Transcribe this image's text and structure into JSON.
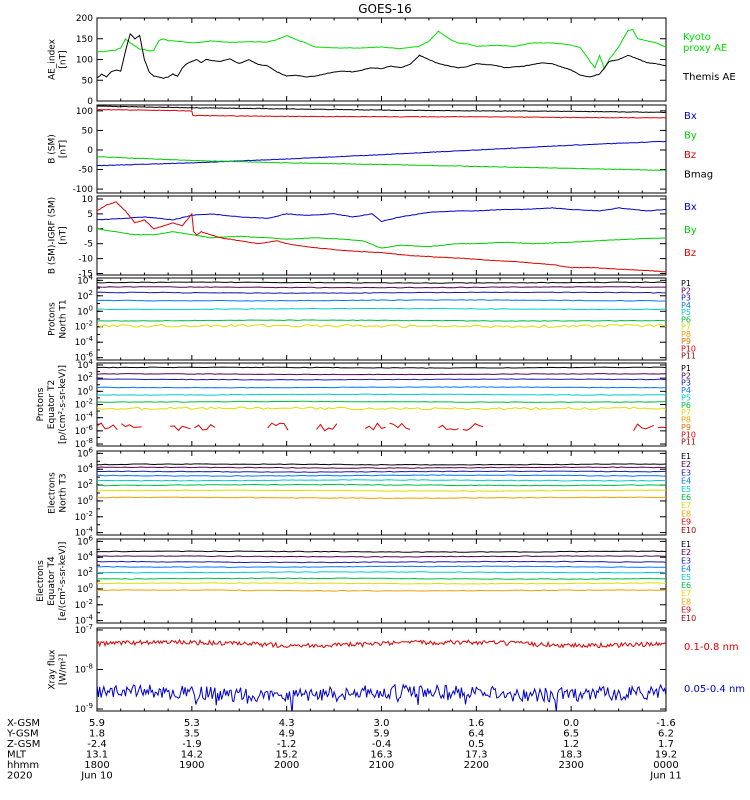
{
  "title": "GOES-16",
  "chart_data": [
    {
      "type": "line",
      "ylabel": [
        "AE_index",
        "[nT]"
      ],
      "yticks": [
        "200",
        "150",
        "100",
        "50",
        "0"
      ],
      "ylim": [
        0,
        200
      ],
      "series": [
        {
          "name": "Kyoto proxy AE",
          "label_lines": [
            "Kyoto",
            "proxy AE"
          ],
          "color": "#00dd00",
          "t": [
            0,
            0.1,
            0.2,
            0.25,
            0.3,
            0.35,
            0.45,
            0.5,
            0.55,
            0.6,
            0.65,
            0.7,
            0.75,
            0.8,
            0.9,
            1.0,
            1.1,
            1.2,
            1.4,
            1.6,
            1.8,
            1.9,
            2.0,
            2.1,
            2.2,
            2.3,
            2.5,
            2.8,
            3.0,
            3.2,
            3.4,
            3.5,
            3.6,
            3.7,
            3.8,
            3.9,
            4.0,
            4.1,
            4.2,
            4.4,
            4.6,
            4.8,
            5.0,
            5.1,
            5.2,
            5.25,
            5.3,
            5.35,
            5.4,
            5.5,
            5.6,
            5.65,
            5.7,
            5.8,
            5.9,
            6.0
          ],
          "v": [
            118,
            120,
            123,
            128,
            150,
            140,
            125,
            124,
            120,
            122,
            145,
            150,
            145,
            145,
            143,
            140,
            142,
            145,
            141,
            143,
            142,
            148,
            158,
            148,
            140,
            130,
            128,
            128,
            130,
            126,
            132,
            144,
            168,
            152,
            140,
            138,
            132,
            133,
            134,
            132,
            140,
            140,
            135,
            128,
            95,
            80,
            110,
            78,
            100,
            130,
            170,
            172,
            150,
            145,
            140,
            130
          ]
        },
        {
          "name": "Themis AE",
          "label_lines": [
            "Themis AE"
          ],
          "color": "#000000",
          "t": [
            0,
            0.05,
            0.1,
            0.15,
            0.2,
            0.25,
            0.3,
            0.35,
            0.4,
            0.45,
            0.5,
            0.55,
            0.6,
            0.65,
            0.7,
            0.75,
            0.8,
            0.85,
            0.9,
            0.95,
            1.0,
            1.05,
            1.1,
            1.15,
            1.2,
            1.3,
            1.4,
            1.5,
            1.6,
            1.7,
            1.8,
            1.9,
            2.0,
            2.1,
            2.2,
            2.3,
            2.4,
            2.5,
            2.6,
            2.7,
            2.8,
            2.9,
            3.0,
            3.1,
            3.2,
            3.3,
            3.4,
            3.5,
            3.6,
            3.7,
            3.8,
            3.9,
            4.0,
            4.1,
            4.2,
            4.3,
            4.4,
            4.5,
            4.6,
            4.7,
            4.8,
            4.9,
            5.0,
            5.1,
            5.2,
            5.3,
            5.4,
            5.5,
            5.6,
            5.7,
            5.8,
            5.9,
            6.0
          ],
          "v": [
            55,
            65,
            58,
            70,
            75,
            72,
            120,
            162,
            150,
            158,
            100,
            70,
            60,
            58,
            55,
            58,
            65,
            60,
            80,
            90,
            95,
            100,
            92,
            100,
            98,
            95,
            102,
            90,
            100,
            88,
            85,
            70,
            60,
            62,
            58,
            60,
            65,
            70,
            72,
            70,
            75,
            80,
            78,
            84,
            80,
            88,
            110,
            100,
            90,
            85,
            80,
            82,
            90,
            88,
            86,
            80,
            82,
            84,
            88,
            92,
            90,
            82,
            75,
            62,
            58,
            65,
            95,
            100,
            110,
            102,
            92,
            90,
            85
          ]
        }
      ]
    },
    {
      "type": "line",
      "ylabel": [
        "B (SM)",
        "[nT]"
      ],
      "yticks": [
        "100",
        "50",
        "0",
        "-50",
        "-100"
      ],
      "ylim": [
        -110,
        115
      ],
      "series": [
        {
          "name": "Bx",
          "label_lines": [
            "Bx"
          ],
          "color": "#0000cc",
          "t": [
            0,
            1,
            2,
            3,
            4,
            5,
            6
          ],
          "v": [
            -40,
            -33,
            -23,
            -12,
            0,
            12,
            22
          ]
        },
        {
          "name": "By",
          "label_lines": [
            "By"
          ],
          "color": "#00cc00",
          "t": [
            0,
            0.5,
            1,
            1.5,
            2,
            3,
            4,
            5,
            6
          ],
          "v": [
            -17,
            -22,
            -27,
            -30,
            -33,
            -37,
            -42,
            -47,
            -52
          ]
        },
        {
          "name": "Bz",
          "label_lines": [
            "Bz"
          ],
          "color": "#dd0000",
          "t": [
            0,
            0.5,
            1,
            1.01,
            2,
            3,
            4,
            5,
            6
          ],
          "v": [
            103,
            102,
            100,
            88,
            86,
            85,
            85,
            83,
            82
          ]
        },
        {
          "name": "Bmag",
          "label_lines": [
            "Bmag"
          ],
          "color": "#000000",
          "t": [
            0,
            1,
            2,
            3,
            4,
            5,
            6
          ],
          "v": [
            112,
            108,
            105,
            102,
            100,
            99,
            96
          ]
        }
      ]
    },
    {
      "type": "line",
      "ylabel": [
        "B (SM)-IGRF (SM)",
        "[nT]"
      ],
      "yticks": [
        "10",
        "5",
        "0",
        "-5",
        "-10",
        "-15"
      ],
      "ylim": [
        -15.5,
        11
      ],
      "series": [
        {
          "name": "Bx",
          "label_lines": [
            "Bx"
          ],
          "color": "#0000cc",
          "t": [
            0,
            0.3,
            0.5,
            0.8,
            1.0,
            1.2,
            1.5,
            1.8,
            2.0,
            2.2,
            2.5,
            2.7,
            2.9,
            3.0,
            3.2,
            3.5,
            3.8,
            4.0,
            4.3,
            4.5,
            4.8,
            5.0,
            5.3,
            5.5,
            5.8,
            6.0
          ],
          "v": [
            3,
            3.5,
            4,
            3,
            4.5,
            5,
            4,
            3.5,
            5,
            4.5,
            5,
            4,
            5,
            2.5,
            4,
            5.5,
            6,
            6,
            6.5,
            6.5,
            7,
            6.5,
            6,
            7,
            6,
            6.5
          ]
        },
        {
          "name": "By",
          "label_lines": [
            "By"
          ],
          "color": "#00cc00",
          "t": [
            0,
            0.2,
            0.4,
            0.6,
            0.8,
            1.0,
            1.2,
            1.5,
            1.8,
            2.0,
            2.3,
            2.6,
            2.8,
            3.0,
            3.2,
            3.5,
            3.8,
            4.0,
            4.3,
            4.6,
            5.0,
            5.3,
            5.6,
            6.0
          ],
          "v": [
            0,
            -1,
            -2,
            -2,
            -1,
            -2,
            -3,
            -2.5,
            -3,
            -3.5,
            -3,
            -3.5,
            -4,
            -6.5,
            -5.5,
            -6,
            -5,
            -5,
            -4.5,
            -5,
            -4.5,
            -4,
            -3.5,
            -3
          ]
        },
        {
          "name": "Bz",
          "label_lines": [
            "Bz"
          ],
          "color": "#dd0000",
          "t": [
            0,
            0.1,
            0.2,
            0.3,
            0.35,
            0.4,
            0.5,
            0.6,
            0.7,
            0.8,
            0.9,
            1.0,
            1.02,
            1.05,
            1.1,
            1.3,
            1.5,
            1.7,
            1.9,
            2.0,
            2.2,
            2.5,
            2.7,
            3.0,
            3.3,
            3.6,
            3.9,
            4.1,
            4.4,
            4.6,
            4.8,
            5.0,
            5.2,
            5.5,
            5.8,
            6.0
          ],
          "v": [
            6,
            8,
            9,
            6,
            4,
            2,
            3,
            0,
            1,
            2,
            1,
            5,
            -1,
            -2,
            -1,
            -3,
            -4,
            -5,
            -4,
            -5,
            -6,
            -7,
            -7.5,
            -8,
            -9,
            -9.5,
            -10,
            -10.5,
            -11,
            -11.5,
            -12,
            -13,
            -13,
            -13.5,
            -14,
            -14.5
          ]
        }
      ]
    },
    {
      "type": "line",
      "ylabel": [
        "Protons",
        "North T1"
      ],
      "ylog": true,
      "ylim": [
        -6.3,
        4.3
      ],
      "yticks": [
        [
          4,
          "4"
        ],
        [
          2,
          "2"
        ],
        [
          0,
          "0"
        ],
        [
          -2,
          "-2"
        ],
        [
          -4,
          "-4"
        ],
        [
          -6,
          "-6"
        ]
      ],
      "channels": [
        {
          "name": "P1",
          "color": "#000000",
          "level": 3.7
        },
        {
          "name": "P2",
          "color": "#550055",
          "level": 3.1
        },
        {
          "name": "P3",
          "color": "#1a1aaa",
          "level": 2.4
        },
        {
          "name": "P4",
          "color": "#0077ff",
          "level": 1.4
        },
        {
          "name": "P5",
          "color": "#00cccc",
          "level": 0.3
        },
        {
          "name": "P6",
          "color": "#00bb44",
          "level": -1.2
        },
        {
          "name": "P7",
          "color": "#dddd00",
          "level": -1.9,
          "noisy": true
        },
        {
          "name": "P8",
          "color": "#f0a000",
          "level": -3.3,
          "dashed": true
        },
        {
          "name": "P9",
          "color": "#e07000",
          "level": -99
        },
        {
          "name": "P10",
          "color": "#dd0000",
          "level": -99
        },
        {
          "name": "P11",
          "color": "#990000",
          "level": -99
        }
      ]
    },
    {
      "type": "line",
      "ylabel": [
        "Protons",
        "Equator T2",
        "[p/(cm²-s-sr-keV)]"
      ],
      "ylog": true,
      "ylim": [
        -8.3,
        4.3
      ],
      "yticks": [
        [
          4,
          "4"
        ],
        [
          2,
          "2"
        ],
        [
          0,
          "0"
        ],
        [
          -2,
          "-2"
        ],
        [
          -4,
          "-4"
        ],
        [
          -6,
          "-6"
        ],
        [
          -8,
          "-8"
        ]
      ],
      "channels": [
        {
          "name": "P1",
          "color": "#000000",
          "level": 3.6
        },
        {
          "name": "P2",
          "color": "#550055",
          "level": 2.6
        },
        {
          "name": "P3",
          "color": "#1a1aaa",
          "level": 1.8
        },
        {
          "name": "P4",
          "color": "#0077ff",
          "level": 0.6
        },
        {
          "name": "P5",
          "color": "#00cccc",
          "level": -0.5
        },
        {
          "name": "P6",
          "color": "#00bb44",
          "level": -1.6
        },
        {
          "name": "P7",
          "color": "#dddd00",
          "level": -2.6,
          "noisy": true
        },
        {
          "name": "P8",
          "color": "#f0a000",
          "level": -3.9,
          "dashed": true
        },
        {
          "name": "P9",
          "color": "#e07000",
          "level": -99
        },
        {
          "name": "P10",
          "color": "#dd0000",
          "level": -5.4,
          "dashed": true
        },
        {
          "name": "P11",
          "color": "#990000",
          "level": -99
        }
      ]
    },
    {
      "type": "line",
      "ylabel": [
        "Electrons",
        "North T3"
      ],
      "ylog": true,
      "ylim": [
        -4.3,
        6.3
      ],
      "yticks": [
        [
          6,
          "6"
        ],
        [
          4,
          "4"
        ],
        [
          2,
          "2"
        ],
        [
          0,
          "0"
        ],
        [
          -2,
          "-2"
        ],
        [
          -4,
          "-4"
        ]
      ],
      "channels": [
        {
          "name": "E1",
          "color": "#000000",
          "level": 4.6
        },
        {
          "name": "E2",
          "color": "#550055",
          "level": 4.2
        },
        {
          "name": "E3",
          "color": "#1a1aaa",
          "level": 3.7
        },
        {
          "name": "E4",
          "color": "#0077ff",
          "level": 3.2
        },
        {
          "name": "E5",
          "color": "#00cccc",
          "level": 2.6
        },
        {
          "name": "E6",
          "color": "#00bb44",
          "level": 2.0
        },
        {
          "name": "E7",
          "color": "#dddd00",
          "level": 1.3
        },
        {
          "name": "E8",
          "color": "#f0a000",
          "level": 0.4
        },
        {
          "name": "E9",
          "color": "#dd0000",
          "level": -2.0,
          "dashed": true
        },
        {
          "name": "E10",
          "color": "#990000",
          "level": -99
        }
      ]
    },
    {
      "type": "line",
      "ylabel": [
        "Electrons",
        "Equator T4",
        "[e/(cm²-s-sr-keV)]"
      ],
      "ylog": true,
      "ylim": [
        -4.3,
        6.3
      ],
      "yticks": [
        [
          6,
          "6"
        ],
        [
          4,
          "4"
        ],
        [
          2,
          "2"
        ],
        [
          0,
          "0"
        ],
        [
          -2,
          "-2"
        ],
        [
          -4,
          "-4"
        ]
      ],
      "channels": [
        {
          "name": "E1",
          "color": "#000000",
          "level": 4.7
        },
        {
          "name": "E2",
          "color": "#550055",
          "level": 4.1
        },
        {
          "name": "E3",
          "color": "#1a1aaa",
          "level": 3.4
        },
        {
          "name": "E4",
          "color": "#0077ff",
          "level": 2.8
        },
        {
          "name": "E5",
          "color": "#00cccc",
          "level": 2.1
        },
        {
          "name": "E6",
          "color": "#00bb44",
          "level": 1.3
        },
        {
          "name": "E7",
          "color": "#dddd00",
          "level": 0.7
        },
        {
          "name": "E8",
          "color": "#f0a000",
          "level": -0.2
        },
        {
          "name": "E9",
          "color": "#dd0000",
          "level": -1.8,
          "dashed": true
        },
        {
          "name": "E10",
          "color": "#990000",
          "level": -99
        }
      ]
    },
    {
      "type": "line",
      "ylabel": [
        "Xray flux",
        "[W/m²]"
      ],
      "ylog": true,
      "ylim": [
        -9.05,
        -6.95
      ],
      "yticks": [
        [
          -7,
          "-7"
        ],
        [
          -8,
          "-8"
        ],
        [
          -9,
          "-9"
        ]
      ],
      "series": [
        {
          "name": "0.1-0.8 nm",
          "label_lines": [
            "0.1-0.8 nm"
          ],
          "color": "#dd0000",
          "base": -7.35,
          "noise": 0.06
        },
        {
          "name": "0.05-0.4 nm",
          "label_lines": [
            "0.05-0.4 nm"
          ],
          "color": "#0000cc",
          "base": -8.6,
          "noise": 0.18
        }
      ]
    }
  ],
  "xaxis": {
    "range_hours": [
      0,
      6
    ],
    "tick_labels": [
      "1800",
      "1900",
      "2000",
      "2100",
      "2200",
      "2300",
      "0000"
    ],
    "dates": {
      "start": "Jun 10",
      "end": "Jun 11"
    }
  },
  "ephemeris": {
    "rows": [
      {
        "label": "X-GSM",
        "values": [
          "5.9",
          "5.3",
          "4.3",
          "3.0",
          "1.6",
          "0.0",
          "-1.6"
        ]
      },
      {
        "label": "Y-GSM",
        "values": [
          "1.8",
          "3.5",
          "4.9",
          "5.9",
          "6.4",
          "6.5",
          "6.2"
        ]
      },
      {
        "label": "Z-GSM",
        "values": [
          "-2.4",
          "-1.9",
          "-1.2",
          "-0.4",
          "0.5",
          "1.2",
          "1.7"
        ]
      },
      {
        "label": "MLT",
        "values": [
          "13.1",
          "14.2",
          "15.2",
          "16.3",
          "17.3",
          "18.3",
          "19.2"
        ]
      },
      {
        "label": "hhmm",
        "values": [
          "1800",
          "1900",
          "2000",
          "2100",
          "2200",
          "2300",
          "0000"
        ]
      },
      {
        "label": "2020",
        "values": [
          "Jun 10",
          "",
          "",
          "",
          "",
          "",
          "Jun 11"
        ]
      }
    ]
  }
}
